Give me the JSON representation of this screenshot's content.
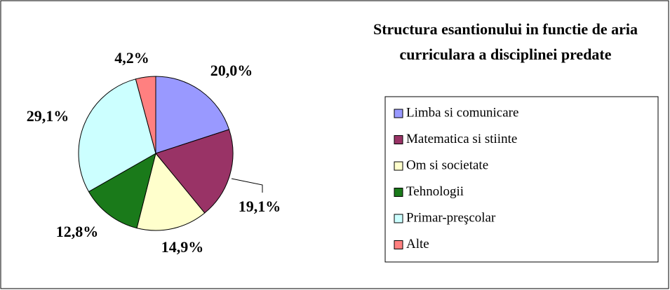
{
  "chart_data": {
    "type": "pie",
    "title": "Structura esantionului in functie de aria curriculara a disciplinei predate",
    "categories": [
      "Limba si comunicare",
      "Matematica si stiinte",
      "Om si societate",
      "Tehnologii",
      "Primar-preşcolar",
      "Alte"
    ],
    "values": [
      20.0,
      19.1,
      14.9,
      12.8,
      29.1,
      4.2
    ],
    "value_labels": [
      "20,0%",
      "19,1%",
      "14,9%",
      "12,8%",
      "29,1%",
      "4,2%"
    ],
    "colors": [
      "#9999ff",
      "#993366",
      "#ffffcc",
      "#1a7a1a",
      "#ccffff",
      "#ff8080"
    ]
  }
}
